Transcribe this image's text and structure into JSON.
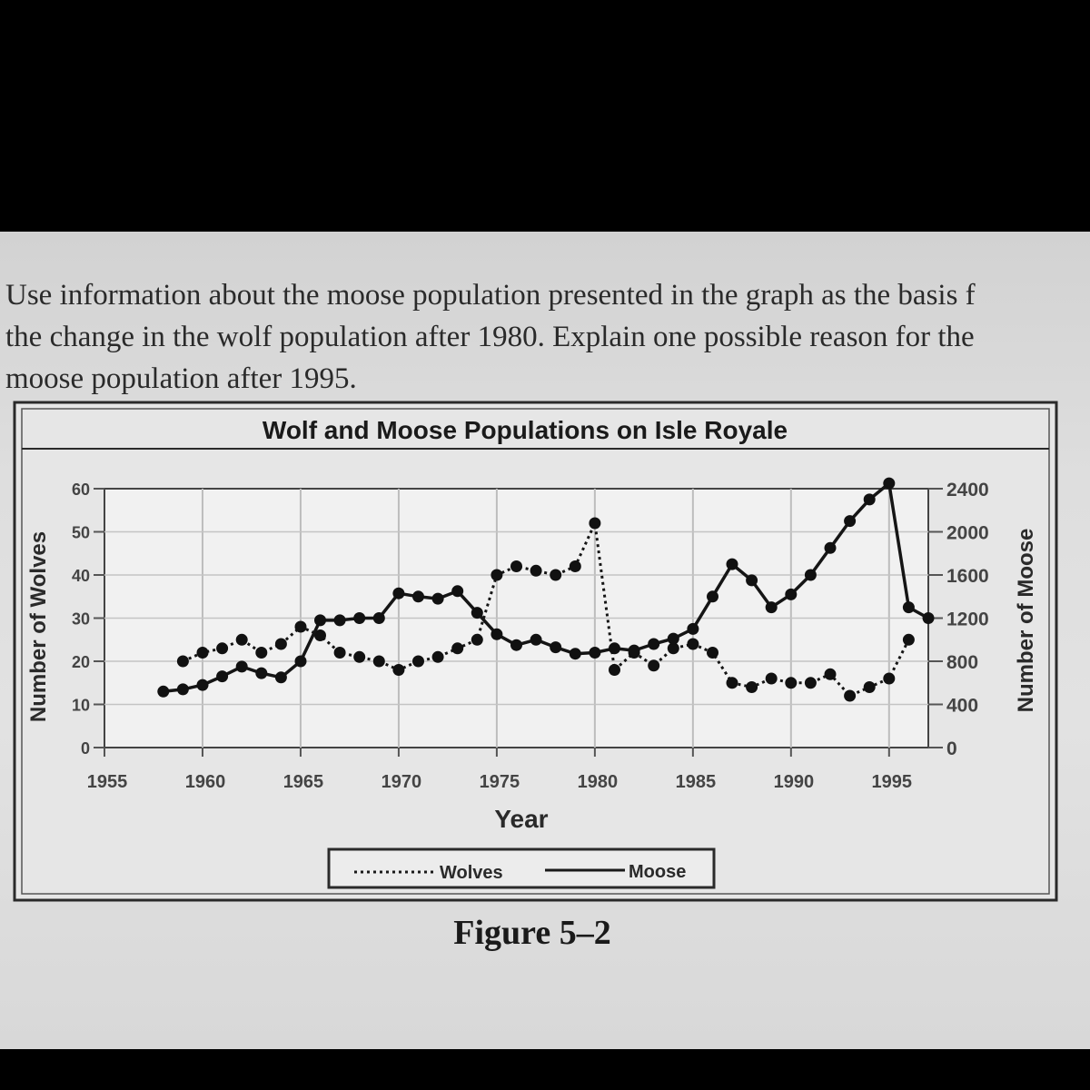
{
  "question": {
    "lines": [
      "Use information about the moose population presented in the graph as the basis f",
      "the change in the wolf population after 1980. Explain one possible reason for the",
      "moose population after 1995."
    ]
  },
  "figure_caption": "Figure 5–2",
  "colors": {
    "paper": "#dedede",
    "ink": "#1a1a1a",
    "frame": "#333333",
    "grid": "#b8b8b8",
    "background": "#000000"
  },
  "chart_data": {
    "type": "line",
    "title": "Wolf and Moose Populations on Isle Royale",
    "xlabel": "Year",
    "ylabel_left": "Number of Wolves",
    "ylabel_right": "Number of Moose",
    "xlim": [
      1955,
      1997
    ],
    "x_ticks": [
      "1955",
      "1960",
      "1965",
      "1970",
      "1975",
      "1980",
      "1985",
      "1990",
      "1995"
    ],
    "y_left_lim": [
      0,
      60
    ],
    "y_left_ticks": [
      "0",
      "10",
      "20",
      "30",
      "40",
      "50",
      "60"
    ],
    "y_right_lim": [
      0,
      2400
    ],
    "y_right_ticks": [
      "0",
      "400",
      "800",
      "1200",
      "1600",
      "2000",
      "2400"
    ],
    "grid": true,
    "legend_position": "bottom-center",
    "legend": [
      "Wolves",
      "Moose"
    ],
    "series": [
      {
        "name": "Wolves",
        "axis": "left",
        "style": "dotted",
        "x": [
          1959,
          1960,
          1961,
          1962,
          1963,
          1964,
          1965,
          1966,
          1967,
          1968,
          1969,
          1970,
          1971,
          1972,
          1973,
          1974,
          1975,
          1976,
          1977,
          1978,
          1979,
          1980,
          1981,
          1982,
          1983,
          1984,
          1985,
          1986,
          1987,
          1988,
          1989,
          1990,
          1991,
          1992,
          1993,
          1994,
          1995,
          1996
        ],
        "y": [
          20,
          22,
          23,
          25,
          22,
          24,
          28,
          26,
          22,
          21,
          20,
          18,
          20,
          21,
          23,
          25,
          40,
          42,
          41,
          40,
          42,
          52,
          18,
          22,
          19,
          23,
          24,
          22,
          15,
          14,
          16,
          15,
          15,
          17,
          12,
          14,
          16,
          25
        ]
      },
      {
        "name": "Moose",
        "axis": "right",
        "style": "solid",
        "x": [
          1958,
          1959,
          1960,
          1961,
          1962,
          1963,
          1964,
          1965,
          1966,
          1967,
          1968,
          1969,
          1970,
          1971,
          1972,
          1973,
          1974,
          1975,
          1976,
          1977,
          1978,
          1979,
          1980,
          1981,
          1982,
          1983,
          1984,
          1985,
          1986,
          1987,
          1988,
          1989,
          1990,
          1991,
          1992,
          1993,
          1994,
          1995,
          1996,
          1997
        ],
        "y": [
          520,
          540,
          580,
          660,
          750,
          690,
          650,
          800,
          1180,
          1180,
          1200,
          1200,
          1430,
          1400,
          1380,
          1450,
          1250,
          1050,
          950,
          1000,
          930,
          870,
          880,
          920,
          900,
          960,
          1010,
          1100,
          1400,
          1700,
          1550,
          1300,
          1420,
          1600,
          1850,
          2100,
          2300,
          2450,
          1300,
          1200
        ]
      }
    ]
  }
}
